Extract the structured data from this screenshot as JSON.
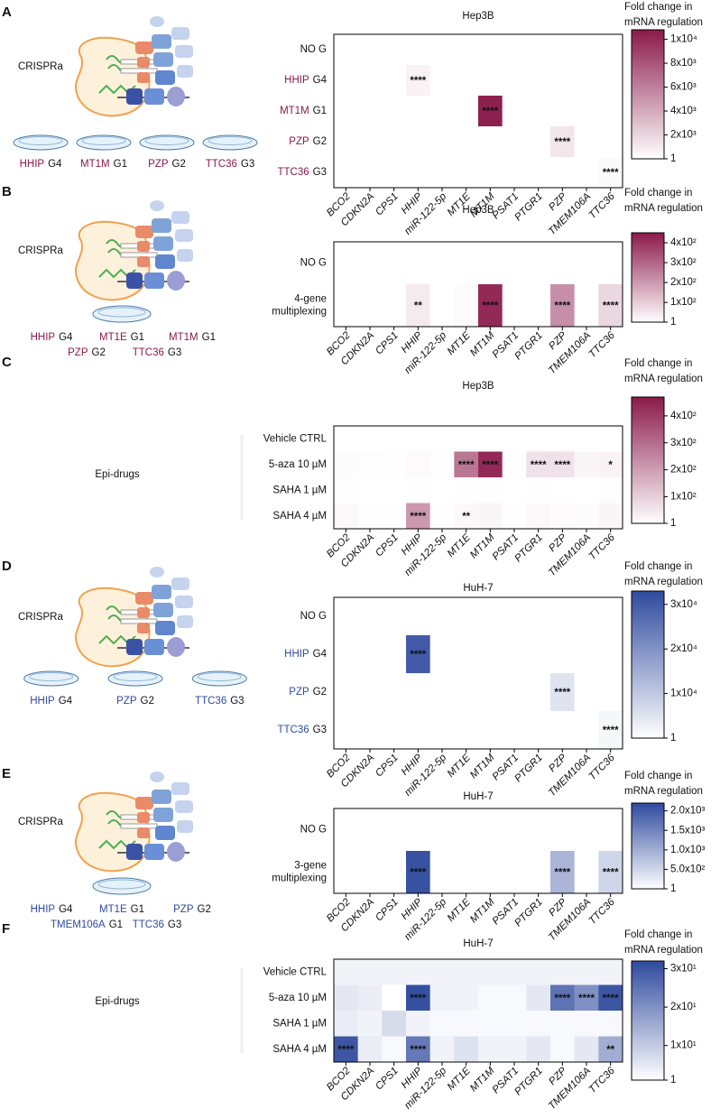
{
  "chart_data": [
    {
      "type": "heatmap",
      "panel": "A",
      "title": "Hep3B",
      "left_label": "CRISPRa",
      "dish_labels": [
        [
          {
            "gene": "HHIP",
            "guide": "G4"
          },
          {
            "gene": "MT1M",
            "guide": "G1"
          },
          {
            "gene": "PZP",
            "guide": "G2"
          },
          {
            "gene": "TTC36",
            "guide": "G3"
          }
        ]
      ],
      "accent_color": "#8b1a4a",
      "rows": [
        "NO G",
        {
          "gene": "HHIP",
          "guide": "G4"
        },
        {
          "gene": "MT1M",
          "guide": "G1"
        },
        {
          "gene": "PZP",
          "guide": "G2"
        },
        {
          "gene": "TTC36",
          "guide": "G3"
        }
      ],
      "columns": [
        "BCO2",
        "CDKN2A",
        "CPS1",
        "HHIP",
        "miR-122-5p",
        "MT1E",
        "MT1M",
        "PSAT1",
        "PTGR1",
        "PZP",
        "TMEM106A",
        "TTC36"
      ],
      "highlight_columns": [
        3,
        6,
        9,
        11
      ],
      "values": [
        [
          1,
          1,
          1,
          1,
          1,
          1,
          1,
          1,
          1,
          1,
          1,
          1
        ],
        [
          1,
          1,
          1,
          600,
          1,
          1,
          1,
          1,
          1,
          1,
          1,
          1
        ],
        [
          1,
          1,
          1,
          1,
          1,
          1,
          10500,
          1,
          1,
          1,
          1,
          1
        ],
        [
          1,
          1,
          1,
          1,
          1,
          1,
          1,
          1,
          1,
          1200,
          1,
          1
        ],
        [
          1,
          1,
          1,
          1,
          1,
          1,
          1,
          1,
          1,
          1,
          1,
          300
        ]
      ],
      "significance": [
        [
          null,
          null,
          null,
          null,
          null,
          null,
          null,
          null,
          null,
          null,
          null,
          null
        ],
        [
          null,
          null,
          null,
          "****",
          null,
          null,
          null,
          null,
          null,
          null,
          null,
          null
        ],
        [
          null,
          null,
          null,
          null,
          null,
          null,
          "****",
          null,
          null,
          null,
          null,
          null
        ],
        [
          null,
          null,
          null,
          null,
          null,
          null,
          null,
          null,
          null,
          "****",
          null,
          null
        ],
        [
          null,
          null,
          null,
          null,
          null,
          null,
          null,
          null,
          null,
          null,
          null,
          "****"
        ]
      ],
      "colorbar_label": [
        "Fold change in",
        "mRNA regulation"
      ],
      "colorbar_lim": [
        1,
        10800
      ],
      "colorbar_ticks": [
        1,
        {
          "value": 2000,
          "label": "2x10³"
        },
        {
          "value": 4000,
          "label": "4x10³"
        },
        {
          "value": 6000,
          "label": "6x10³"
        },
        {
          "value": 8000,
          "label": "8x10³"
        },
        {
          "value": 10000,
          "label": "1x10⁴"
        }
      ]
    },
    {
      "type": "heatmap",
      "panel": "B",
      "title": "Hep3B",
      "left_label": "CRISPRa",
      "dish_labels": [
        [
          {
            "gene": "HHIP",
            "guide": "G4"
          },
          {
            "gene": "MT1E",
            "guide": "G1"
          },
          {
            "gene": "MT1M",
            "guide": "G1"
          }
        ],
        [
          {
            "gene": "PZP",
            "guide": "G2"
          },
          {
            "gene": "TTC36",
            "guide": "G3"
          }
        ]
      ],
      "accent_color": "#8b1a4a",
      "rows": [
        "NO G",
        {
          "lines": [
            "4-gene",
            "multiplexing"
          ]
        }
      ],
      "columns": [
        "BCO2",
        "CDKN2A",
        "CPS1",
        "HHIP",
        "miR-122-5p",
        "MT1E",
        "MT1M",
        "PSAT1",
        "PTGR1",
        "PZP",
        "TMEM106A",
        "TTC36"
      ],
      "highlight_columns": [
        3,
        6,
        9,
        11
      ],
      "values": [
        [
          1,
          1,
          1,
          1,
          1,
          1,
          1,
          1,
          1,
          1,
          1,
          1
        ],
        [
          1,
          1,
          1,
          40,
          1,
          10,
          420,
          1,
          1,
          220,
          1,
          80
        ]
      ],
      "significance": [
        [
          null,
          null,
          null,
          null,
          null,
          null,
          null,
          null,
          null,
          null,
          null,
          null
        ],
        [
          null,
          null,
          null,
          "**",
          null,
          null,
          "****",
          null,
          null,
          "****",
          null,
          "****"
        ]
      ],
      "colorbar_label": [
        "Fold change in",
        "mRNA regulation"
      ],
      "colorbar_lim": [
        1,
        450
      ],
      "colorbar_ticks": [
        1,
        {
          "value": 100,
          "label": "1x10²"
        },
        {
          "value": 200,
          "label": "2x10²"
        },
        {
          "value": 300,
          "label": "3x10²"
        },
        {
          "value": 400,
          "label": "4x10²"
        }
      ]
    },
    {
      "type": "heatmap",
      "panel": "C",
      "title": "Hep3B",
      "left_label": "Epi-drugs",
      "accent_color": "#8b1a4a",
      "rows": [
        "Vehicle CTRL",
        "5-aza 10 µM",
        "SAHA 1 µM",
        "SAHA 4 µM"
      ],
      "columns": [
        "BCO2",
        "CDKN2A",
        "CPS1",
        "HHIP",
        "miR-122-5p",
        "MT1E",
        "MT1M",
        "PSAT1",
        "PTGR1",
        "PZP",
        "TMEM106A",
        "TTC36"
      ],
      "highlight_columns": [],
      "values": [
        [
          1,
          1,
          1,
          1,
          1,
          1,
          1,
          1,
          1,
          1,
          1,
          1
        ],
        [
          8,
          5,
          3,
          12,
          3,
          280,
          440,
          3,
          60,
          60,
          20,
          25
        ],
        [
          3,
          2,
          2,
          3,
          2,
          3,
          3,
          2,
          3,
          2,
          2,
          5
        ],
        [
          15,
          5,
          3,
          210,
          3,
          15,
          20,
          3,
          15,
          10,
          8,
          20
        ]
      ],
      "significance": [
        [
          null,
          null,
          null,
          null,
          null,
          null,
          null,
          null,
          null,
          null,
          null,
          null
        ],
        [
          null,
          null,
          null,
          null,
          null,
          "****",
          "****",
          null,
          "****",
          "****",
          null,
          "*"
        ],
        [
          null,
          null,
          null,
          null,
          null,
          null,
          null,
          null,
          null,
          null,
          null,
          null
        ],
        [
          null,
          null,
          null,
          "****",
          null,
          "**",
          null,
          null,
          null,
          null,
          null,
          null
        ]
      ],
      "colorbar_label": [
        "Fold change in",
        "mRNA regulation"
      ],
      "colorbar_lim": [
        1,
        470
      ],
      "colorbar_ticks": [
        1,
        {
          "value": 100,
          "label": "1x10²"
        },
        {
          "value": 200,
          "label": "2x10²"
        },
        {
          "value": 300,
          "label": "3x10²"
        },
        {
          "value": 400,
          "label": "4x10²"
        }
      ]
    },
    {
      "type": "heatmap",
      "panel": "D",
      "title": "HuH-7",
      "left_label": "CRISPRa",
      "dish_labels": [
        [
          {
            "gene": "HHIP",
            "guide": "G4"
          },
          {
            "gene": "PZP",
            "guide": "G2"
          },
          {
            "gene": "TTC36",
            "guide": "G3"
          }
        ]
      ],
      "accent_color": "#2f4a9e",
      "rows": [
        "NO G",
        {
          "gene": "HHIP",
          "guide": "G4"
        },
        {
          "gene": "PZP",
          "guide": "G2"
        },
        {
          "gene": "TTC36",
          "guide": "G3"
        }
      ],
      "columns": [
        "BCO2",
        "CDKN2A",
        "CPS1",
        "HHIP",
        "miR-122-5p",
        "MT1E",
        "MT1M",
        "PSAT1",
        "PTGR1",
        "PZP",
        "TMEM106A",
        "TTC36"
      ],
      "highlight_columns": [
        3,
        9,
        11
      ],
      "values": [
        [
          1,
          1,
          1,
          1,
          1,
          1,
          1,
          1,
          1,
          1,
          1,
          1
        ],
        [
          1,
          1,
          1,
          30000,
          1,
          1,
          1,
          1,
          1,
          1,
          1,
          1
        ],
        [
          1,
          1,
          1,
          1,
          1,
          1,
          1,
          1,
          1,
          5000,
          1,
          1
        ],
        [
          1,
          1,
          1,
          1,
          1,
          1,
          1,
          1,
          1,
          1,
          1,
          1500
        ]
      ],
      "significance": [
        [
          null,
          null,
          null,
          null,
          null,
          null,
          null,
          null,
          null,
          null,
          null,
          null
        ],
        [
          null,
          null,
          null,
          "****",
          null,
          null,
          null,
          null,
          null,
          null,
          null,
          null
        ],
        [
          null,
          null,
          null,
          null,
          null,
          null,
          null,
          null,
          null,
          "****",
          null,
          null
        ],
        [
          null,
          null,
          null,
          null,
          null,
          null,
          null,
          null,
          null,
          null,
          null,
          "****"
        ]
      ],
      "colorbar_label": [
        "Fold change in",
        "mRNA regulation"
      ],
      "colorbar_lim": [
        1,
        33000
      ],
      "colorbar_ticks": [
        1,
        {
          "value": 10000,
          "label": "1x10⁴"
        },
        {
          "value": 20000,
          "label": "2x10⁴"
        },
        {
          "value": 30000,
          "label": "3x10⁴"
        }
      ]
    },
    {
      "type": "heatmap",
      "panel": "E",
      "title": "HuH-7",
      "left_label": "CRISPRa",
      "dish_labels": [
        [
          {
            "gene": "HHIP",
            "guide": "G4"
          },
          {
            "gene": "MT1E",
            "guide": "G1"
          },
          {
            "gene": "PZP",
            "guide": "G2"
          }
        ],
        [
          {
            "gene": "TMEM106A",
            "guide": "G1"
          },
          {
            "gene": "TTC36",
            "guide": "G3"
          }
        ]
      ],
      "accent_color": "#2f4a9e",
      "rows": [
        "NO G",
        {
          "lines": [
            "3-gene",
            "multiplexing"
          ]
        }
      ],
      "columns": [
        "BCO2",
        "CDKN2A",
        "CPS1",
        "HHIP",
        "miR-122-5p",
        "MT1E",
        "MT1M",
        "PSAT1",
        "PTGR1",
        "PZP",
        "TMEM106A",
        "TTC36"
      ],
      "highlight_columns": [
        3,
        9,
        11
      ],
      "values": [
        [
          1,
          1,
          1,
          1,
          1,
          1,
          1,
          1,
          1,
          1,
          1,
          1
        ],
        [
          1,
          1,
          1,
          2100,
          1,
          1,
          1,
          1,
          1,
          900,
          1,
          500
        ]
      ],
      "significance": [
        [
          null,
          null,
          null,
          null,
          null,
          null,
          null,
          null,
          null,
          null,
          null,
          null
        ],
        [
          null,
          null,
          null,
          "****",
          null,
          null,
          null,
          null,
          null,
          "****",
          null,
          "****"
        ]
      ],
      "colorbar_label": [
        "Fold change in",
        "mRNA regulation"
      ],
      "colorbar_lim": [
        1,
        2200
      ],
      "colorbar_ticks": [
        1,
        {
          "value": 500,
          "label": "5.0x10²"
        },
        {
          "value": 1000,
          "label": "1.0x10³"
        },
        {
          "value": 1500,
          "label": "1.5x10³"
        },
        {
          "value": 2000,
          "label": "2.0x10³"
        }
      ]
    },
    {
      "type": "heatmap",
      "panel": "F",
      "title": "HuH-7",
      "left_label": "Epi-drugs",
      "accent_color": "#2f4a9e",
      "rows": [
        "Vehicle CTRL",
        "5-aza 10 µM",
        "SAHA 1 µM",
        "SAHA 4 µM"
      ],
      "columns": [
        "BCO2",
        "CDKN2A",
        "CPS1",
        "HHIP",
        "miR-122-5p",
        "MT1E",
        "MT1M",
        "PSAT1",
        "PTGR1",
        "PZP",
        "TMEM106A",
        "TTC36"
      ],
      "highlight_columns": [],
      "values": [
        [
          3,
          3,
          3,
          3,
          3,
          3,
          3,
          3,
          3,
          3,
          3,
          3
        ],
        [
          5,
          4,
          1,
          31,
          3,
          3,
          2,
          2,
          5,
          25,
          20,
          30
        ],
        [
          4,
          3,
          7,
          3,
          2,
          2,
          2,
          2,
          2,
          2,
          2,
          2
        ],
        [
          30,
          4,
          2,
          24,
          3,
          6,
          3,
          3,
          5,
          2,
          5,
          15
        ]
      ],
      "significance": [
        [
          null,
          null,
          null,
          null,
          null,
          null,
          null,
          null,
          null,
          null,
          null,
          null
        ],
        [
          null,
          null,
          null,
          "****",
          null,
          null,
          null,
          null,
          null,
          "****",
          "****",
          "****"
        ],
        [
          null,
          null,
          null,
          null,
          null,
          null,
          null,
          null,
          null,
          null,
          null,
          null
        ],
        [
          "****",
          null,
          null,
          "****",
          null,
          null,
          null,
          null,
          null,
          null,
          null,
          "**"
        ]
      ],
      "colorbar_label": [
        "Fold change in",
        "mRNA regulation"
      ],
      "colorbar_lim": [
        1,
        32
      ],
      "colorbar_ticks": [
        1,
        {
          "value": 10,
          "label": "1x10¹"
        },
        {
          "value": 20,
          "label": "2x10¹"
        },
        {
          "value": 30,
          "label": "3x10¹"
        }
      ]
    }
  ]
}
